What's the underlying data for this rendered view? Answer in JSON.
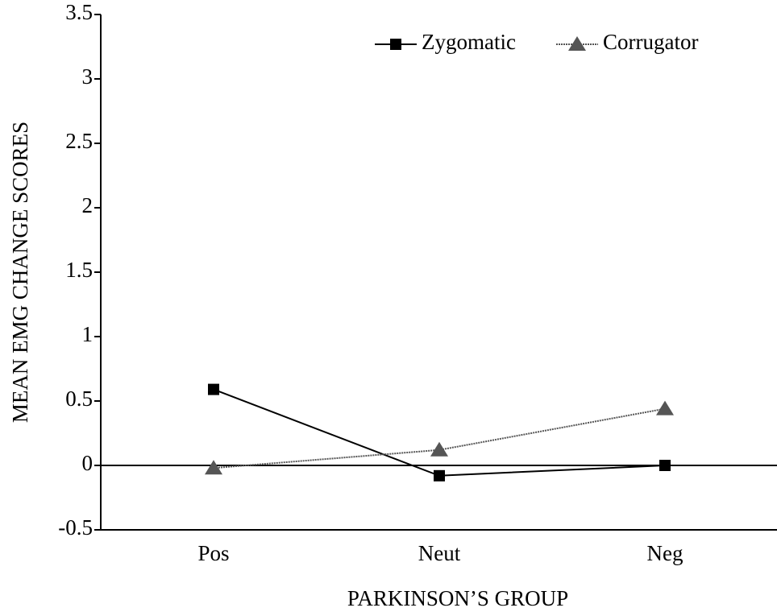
{
  "chart_data": {
    "type": "line",
    "categories": [
      "Pos",
      "Neut",
      "Neg"
    ],
    "series": [
      {
        "name": "Zygomatic",
        "color": "#000000",
        "marker": "square",
        "dash": "solid",
        "values": [
          0.59,
          -0.08,
          0.0
        ]
      },
      {
        "name": "Corrugator",
        "color": "#555555",
        "marker": "triangle",
        "dash": "dotted",
        "values": [
          -0.02,
          0.12,
          0.44
        ]
      }
    ],
    "xlabel": "PARKINSON’S GROUP",
    "ylabel": "MEAN EMG CHANGE SCORES",
    "ylim": [
      -0.5,
      3.5
    ],
    "yticks": [
      -0.5,
      0,
      0.5,
      1,
      1.5,
      2,
      2.5,
      3,
      3.5
    ],
    "legend": "upper right"
  }
}
